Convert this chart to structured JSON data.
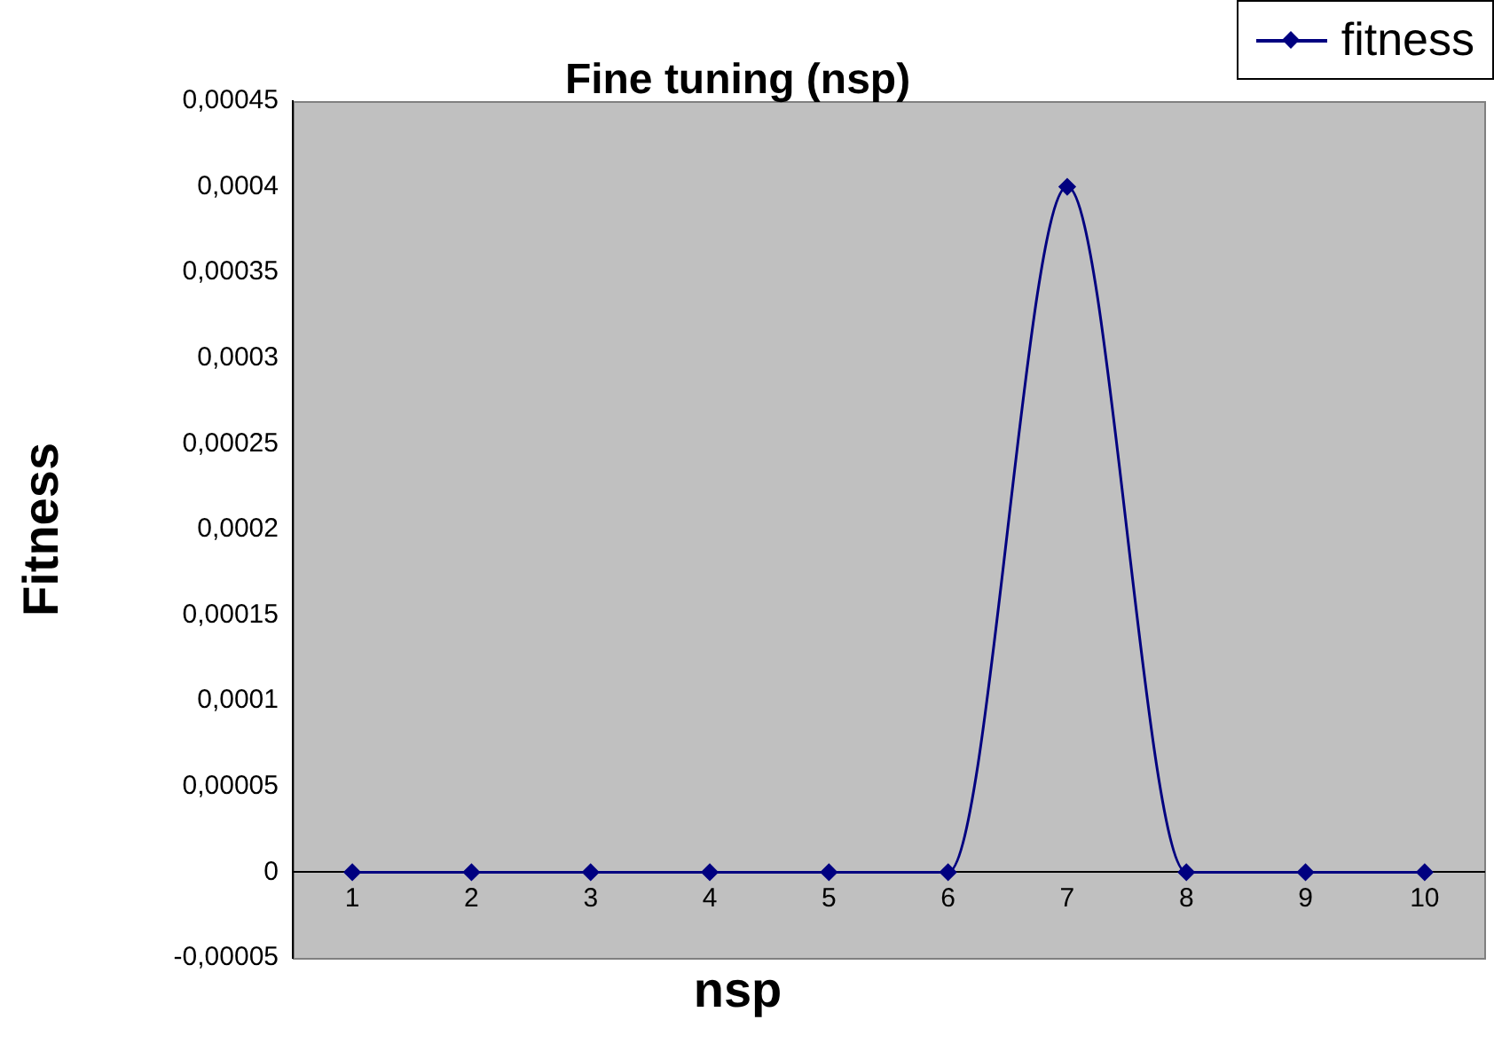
{
  "chart_data": {
    "type": "line",
    "title": "Fine tuning (nsp)",
    "xlabel": "nsp",
    "ylabel": "Fitness",
    "categories": [
      "1",
      "2",
      "3",
      "4",
      "5",
      "6",
      "7",
      "8",
      "9",
      "10"
    ],
    "series": [
      {
        "name": "fitness",
        "color": "#000080",
        "values": [
          0,
          0,
          0,
          0,
          0,
          0,
          0.0004,
          0,
          0,
          0
        ]
      }
    ],
    "ylim": [
      -5e-05,
      0.00045
    ],
    "yticks": [
      {
        "value": -5e-05,
        "label": "-0,00005"
      },
      {
        "value": 0,
        "label": "0"
      },
      {
        "value": 5e-05,
        "label": "0,00005"
      },
      {
        "value": 0.0001,
        "label": "0,0001"
      },
      {
        "value": 0.00015,
        "label": "0,00015"
      },
      {
        "value": 0.0002,
        "label": "0,0002"
      },
      {
        "value": 0.00025,
        "label": "0,00025"
      },
      {
        "value": 0.0003,
        "label": "0,0003"
      },
      {
        "value": 0.00035,
        "label": "0,00035"
      },
      {
        "value": 0.0004,
        "label": "0,0004"
      },
      {
        "value": 0.00045,
        "label": "0,00045"
      }
    ],
    "grid": false,
    "legend": "top right",
    "marker": "diamond",
    "line_style": "solid"
  }
}
